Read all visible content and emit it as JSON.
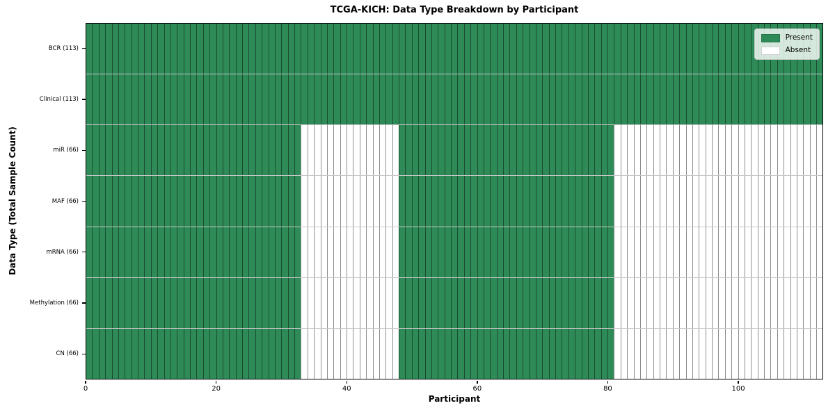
{
  "chart_data": {
    "type": "heatmap",
    "title": "TCGA-KICH: Data Type Breakdown by Participant",
    "xlabel": "Participant",
    "ylabel": "Data Type (Total Sample Count)",
    "total_participants": 113,
    "xlim": [
      0,
      113
    ],
    "x_ticks": [
      0,
      20,
      40,
      60,
      80,
      100
    ],
    "grid": true,
    "rows": [
      {
        "name": "BCR",
        "label": "BCR (113)",
        "sample_count": 113,
        "present_ranges": [
          [
            0,
            113
          ]
        ]
      },
      {
        "name": "Clinical",
        "label": "Clinical (113)",
        "sample_count": 113,
        "present_ranges": [
          [
            0,
            113
          ]
        ]
      },
      {
        "name": "miR",
        "label": "miR (66)",
        "sample_count": 66,
        "present_ranges": [
          [
            0,
            33
          ],
          [
            48,
            81
          ]
        ]
      },
      {
        "name": "MAF",
        "label": "MAF (66)",
        "sample_count": 66,
        "present_ranges": [
          [
            0,
            33
          ],
          [
            48,
            81
          ]
        ]
      },
      {
        "name": "mRNA",
        "label": "mRNA (66)",
        "sample_count": 66,
        "present_ranges": [
          [
            0,
            33
          ],
          [
            48,
            81
          ]
        ]
      },
      {
        "name": "Methylation",
        "label": "Methylation (66)",
        "sample_count": 66,
        "present_ranges": [
          [
            0,
            33
          ],
          [
            48,
            81
          ]
        ]
      },
      {
        "name": "CN",
        "label": "CN (66)",
        "sample_count": 66,
        "present_ranges": [
          [
            0,
            33
          ],
          [
            48,
            81
          ]
        ]
      }
    ],
    "legend": {
      "position": "upper right",
      "entries": [
        {
          "label": "Present",
          "color": "#2e8b57"
        },
        {
          "label": "Absent",
          "color": "#ffffff"
        }
      ]
    },
    "colors": {
      "present": "#2e8b57",
      "absent": "#ffffff",
      "spine": "#000000"
    }
  }
}
